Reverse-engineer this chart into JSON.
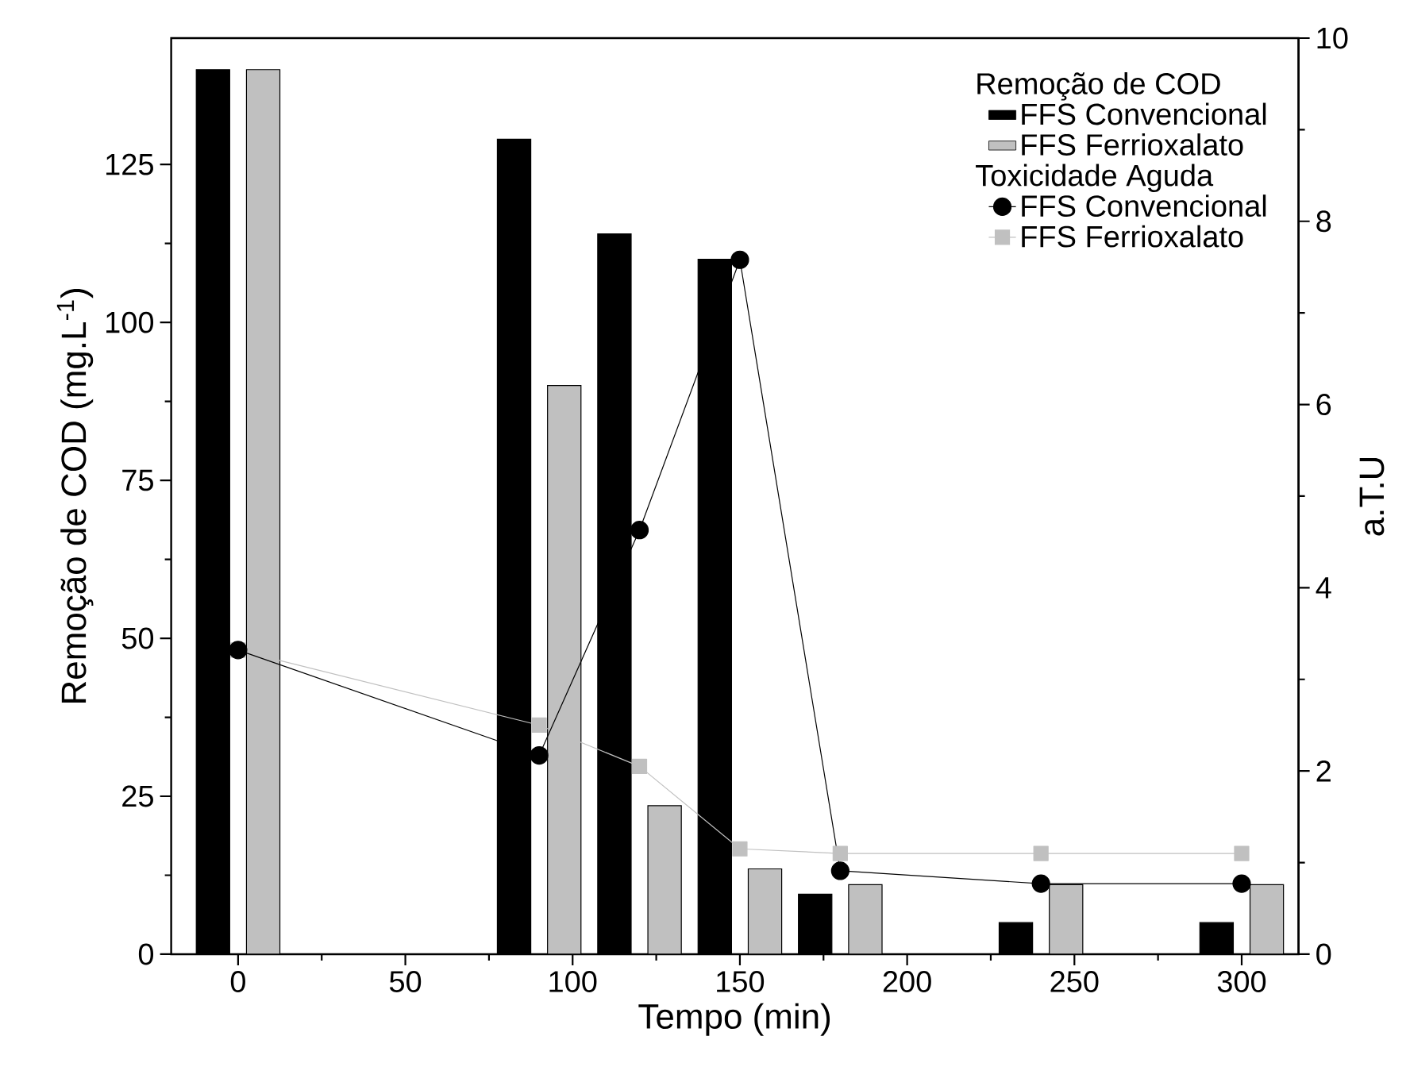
{
  "chart_data": {
    "type": "bar",
    "xlabel": "Tempo (min)",
    "ylabel": "Remoção de COD (mg.L$^{-1}$)",
    "y2label": "a.T.U",
    "legend_title": "Remoção de COD",
    "annotations": [
      "Toxicidade Aguda"
    ],
    "legend": "top right",
    "x": [
      0,
      90,
      120,
      150,
      180,
      240,
      300
    ],
    "xlim": [
      -20,
      317
    ],
    "xticks": [
      0,
      50,
      100,
      150,
      200,
      250,
      300
    ],
    "ylim": [
      0,
      145
    ],
    "yticks": [
      0,
      25,
      50,
      75,
      100,
      125
    ],
    "y2lim": [
      0,
      10
    ],
    "y2ticks": [
      0,
      2,
      4,
      6,
      8,
      10
    ],
    "series": [
      {
        "name": "FFS Convencional",
        "color": "#000000",
        "values": [
          140,
          129,
          114,
          110,
          9.5,
          5,
          5
        ]
      },
      {
        "name": "FFS Ferrioxalato",
        "color": "#c0c0c0",
        "values": [
          140,
          90,
          23.5,
          13.5,
          11,
          11,
          11
        ]
      },
      {
        "type": "line",
        "axis": "y2",
        "marker": "circle",
        "name": "FFS Convencional",
        "color": "#000000",
        "values": [
          3.32,
          2.17,
          4.63,
          7.58,
          0.91,
          0.77,
          0.77
        ]
      },
      {
        "type": "line",
        "axis": "y2",
        "marker": "square",
        "name": "FFS Ferrioxalato",
        "color": "#c0c0c0",
        "values": [
          3.32,
          2.5,
          2.05,
          1.15,
          1.1,
          1.1,
          1.1
        ]
      }
    ]
  }
}
